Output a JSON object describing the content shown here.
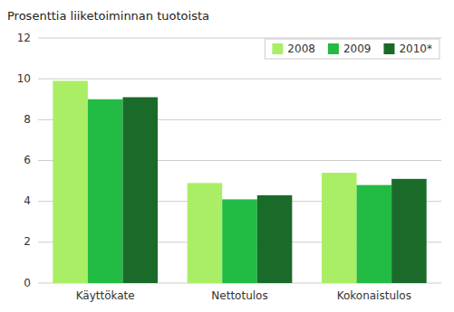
{
  "chart_data": {
    "type": "bar",
    "ylabel": "Prosenttia liiketoiminnan tuotoista",
    "categories": [
      "Käyttökate",
      "Nettotulos",
      "Kokonaistulos"
    ],
    "series": [
      {
        "name": "2008",
        "color": "#aaee66",
        "values": [
          9.9,
          4.9,
          5.4
        ]
      },
      {
        "name": "2009",
        "color": "#22bb44",
        "values": [
          9.0,
          4.1,
          4.8
        ]
      },
      {
        "name": "2010*",
        "color": "#1a6b2a",
        "values": [
          9.1,
          4.3,
          5.1
        ]
      }
    ],
    "ylim": [
      0,
      12
    ],
    "yticks": [
      0,
      2,
      4,
      6,
      8,
      10,
      12
    ],
    "grid": true,
    "legend": "upper right"
  }
}
